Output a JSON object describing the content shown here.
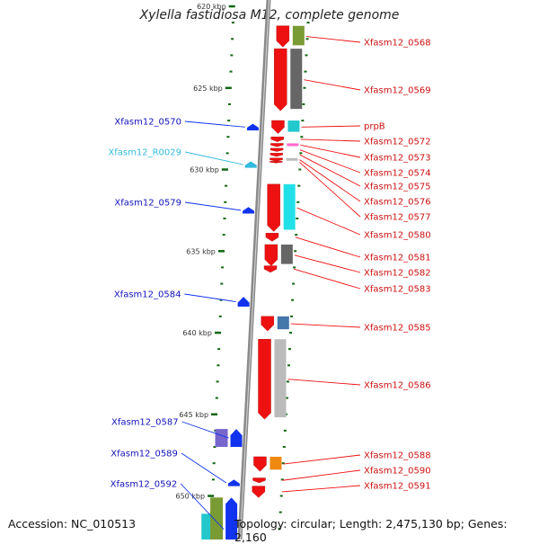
{
  "title": "Xylella fastidiosa M12, complete genome",
  "footer": {
    "accession": "Accession: NC_010513",
    "topology": "Topology: circular; Length: 2,475,130 bp; Genes: 2,160"
  },
  "colors": {
    "forward_cds": "#ee1111",
    "reverse_cds": "#1133ee",
    "rna": "#33bbdd",
    "forward_label": "#cc1111",
    "reverse_label": "#1111bb",
    "backbone": "#8a8a8a",
    "tick": "#116611"
  },
  "kbp_ticks": [
    {
      "kbp": 620,
      "label": "620 kbp"
    },
    {
      "kbp": 625,
      "label": "625 kbp"
    },
    {
      "kbp": 630,
      "label": "630 kbp"
    },
    {
      "kbp": 635,
      "label": "635 kbp"
    },
    {
      "kbp": 640,
      "label": "640 kbp"
    },
    {
      "kbp": 645,
      "label": "645 kbp"
    },
    {
      "kbp": 650,
      "label": "650 kbp"
    }
  ],
  "forward_genes": [
    {
      "label": "Xfasm12_0568",
      "start": 621.2,
      "end": 622.5,
      "cog": "#7a9a33"
    },
    {
      "label": "Xfasm12_0569",
      "start": 622.6,
      "end": 626.4,
      "cog": "#666666"
    },
    {
      "label": "prpB",
      "start": 627.0,
      "end": 627.8,
      "cog": "#22c8cc"
    },
    {
      "label": "Xfasm12_0572",
      "start": 628.0,
      "end": 628.3,
      "cog": ""
    },
    {
      "label": "Xfasm12_0573",
      "start": 628.4,
      "end": 628.6,
      "cog": "#ff66cc"
    },
    {
      "label": "Xfasm12_0574",
      "start": 628.7,
      "end": 628.9,
      "cog": ""
    },
    {
      "label": "Xfasm12_0575",
      "start": 629.0,
      "end": 629.2,
      "cog": ""
    },
    {
      "label": "Xfasm12_0576",
      "start": 629.3,
      "end": 629.5,
      "cog": "#bbbbbb"
    },
    {
      "label": "Xfasm12_0577",
      "start": 629.5,
      "end": 629.6,
      "cog": ""
    },
    {
      "label": "Xfasm12_0580",
      "start": 630.9,
      "end": 633.8,
      "cog": "#22e0e8"
    },
    {
      "label": "Xfasm12_0581",
      "start": 633.9,
      "end": 634.4,
      "cog": ""
    },
    {
      "label": "Xfasm12_0582",
      "start": 634.6,
      "end": 635.9,
      "cog": "#666666"
    },
    {
      "label": "Xfasm12_0583",
      "start": 635.9,
      "end": 636.3,
      "cog": ""
    },
    {
      "label": "Xfasm12_0585",
      "start": 639.0,
      "end": 639.9,
      "cog": "#4477aa"
    },
    {
      "label": "Xfasm12_0586",
      "start": 640.4,
      "end": 645.3,
      "cog": "#bbbbbb"
    },
    {
      "label": "Xfasm12_0588",
      "start": 647.6,
      "end": 648.5,
      "cog": "#ee8811"
    },
    {
      "label": "Xfasm12_0590",
      "start": 648.9,
      "end": 649.2,
      "cog": ""
    },
    {
      "label": "Xfasm12_0591",
      "start": 649.4,
      "end": 650.1,
      "cog": ""
    }
  ],
  "reverse_genes": [
    {
      "label": "Xfasm12_0570",
      "start": 627.2,
      "end": 627.6,
      "cog": ""
    },
    {
      "label": "Xfasm12_R0029",
      "start": 629.5,
      "end": 629.9,
      "cog": "",
      "rna": true
    },
    {
      "label": "Xfasm12_0579",
      "start": 632.3,
      "end": 632.7,
      "cog": ""
    },
    {
      "label": "Xfasm12_0584",
      "start": 637.8,
      "end": 638.4,
      "cog": ""
    },
    {
      "label": "Xfasm12_0587",
      "start": 645.9,
      "end": 647.0,
      "cog": "#7766cc"
    },
    {
      "label": "Xfasm12_0589",
      "start": 649.0,
      "end": 649.4,
      "cog": ""
    },
    {
      "label": "Xfasm12_0592",
      "start": 650.1,
      "end": 654.0,
      "cog": "#7a9a33"
    }
  ],
  "extra_segments": [
    {
      "label": "",
      "start": 650.1,
      "end": 652.0,
      "cog": "#22c8cc"
    }
  ]
}
